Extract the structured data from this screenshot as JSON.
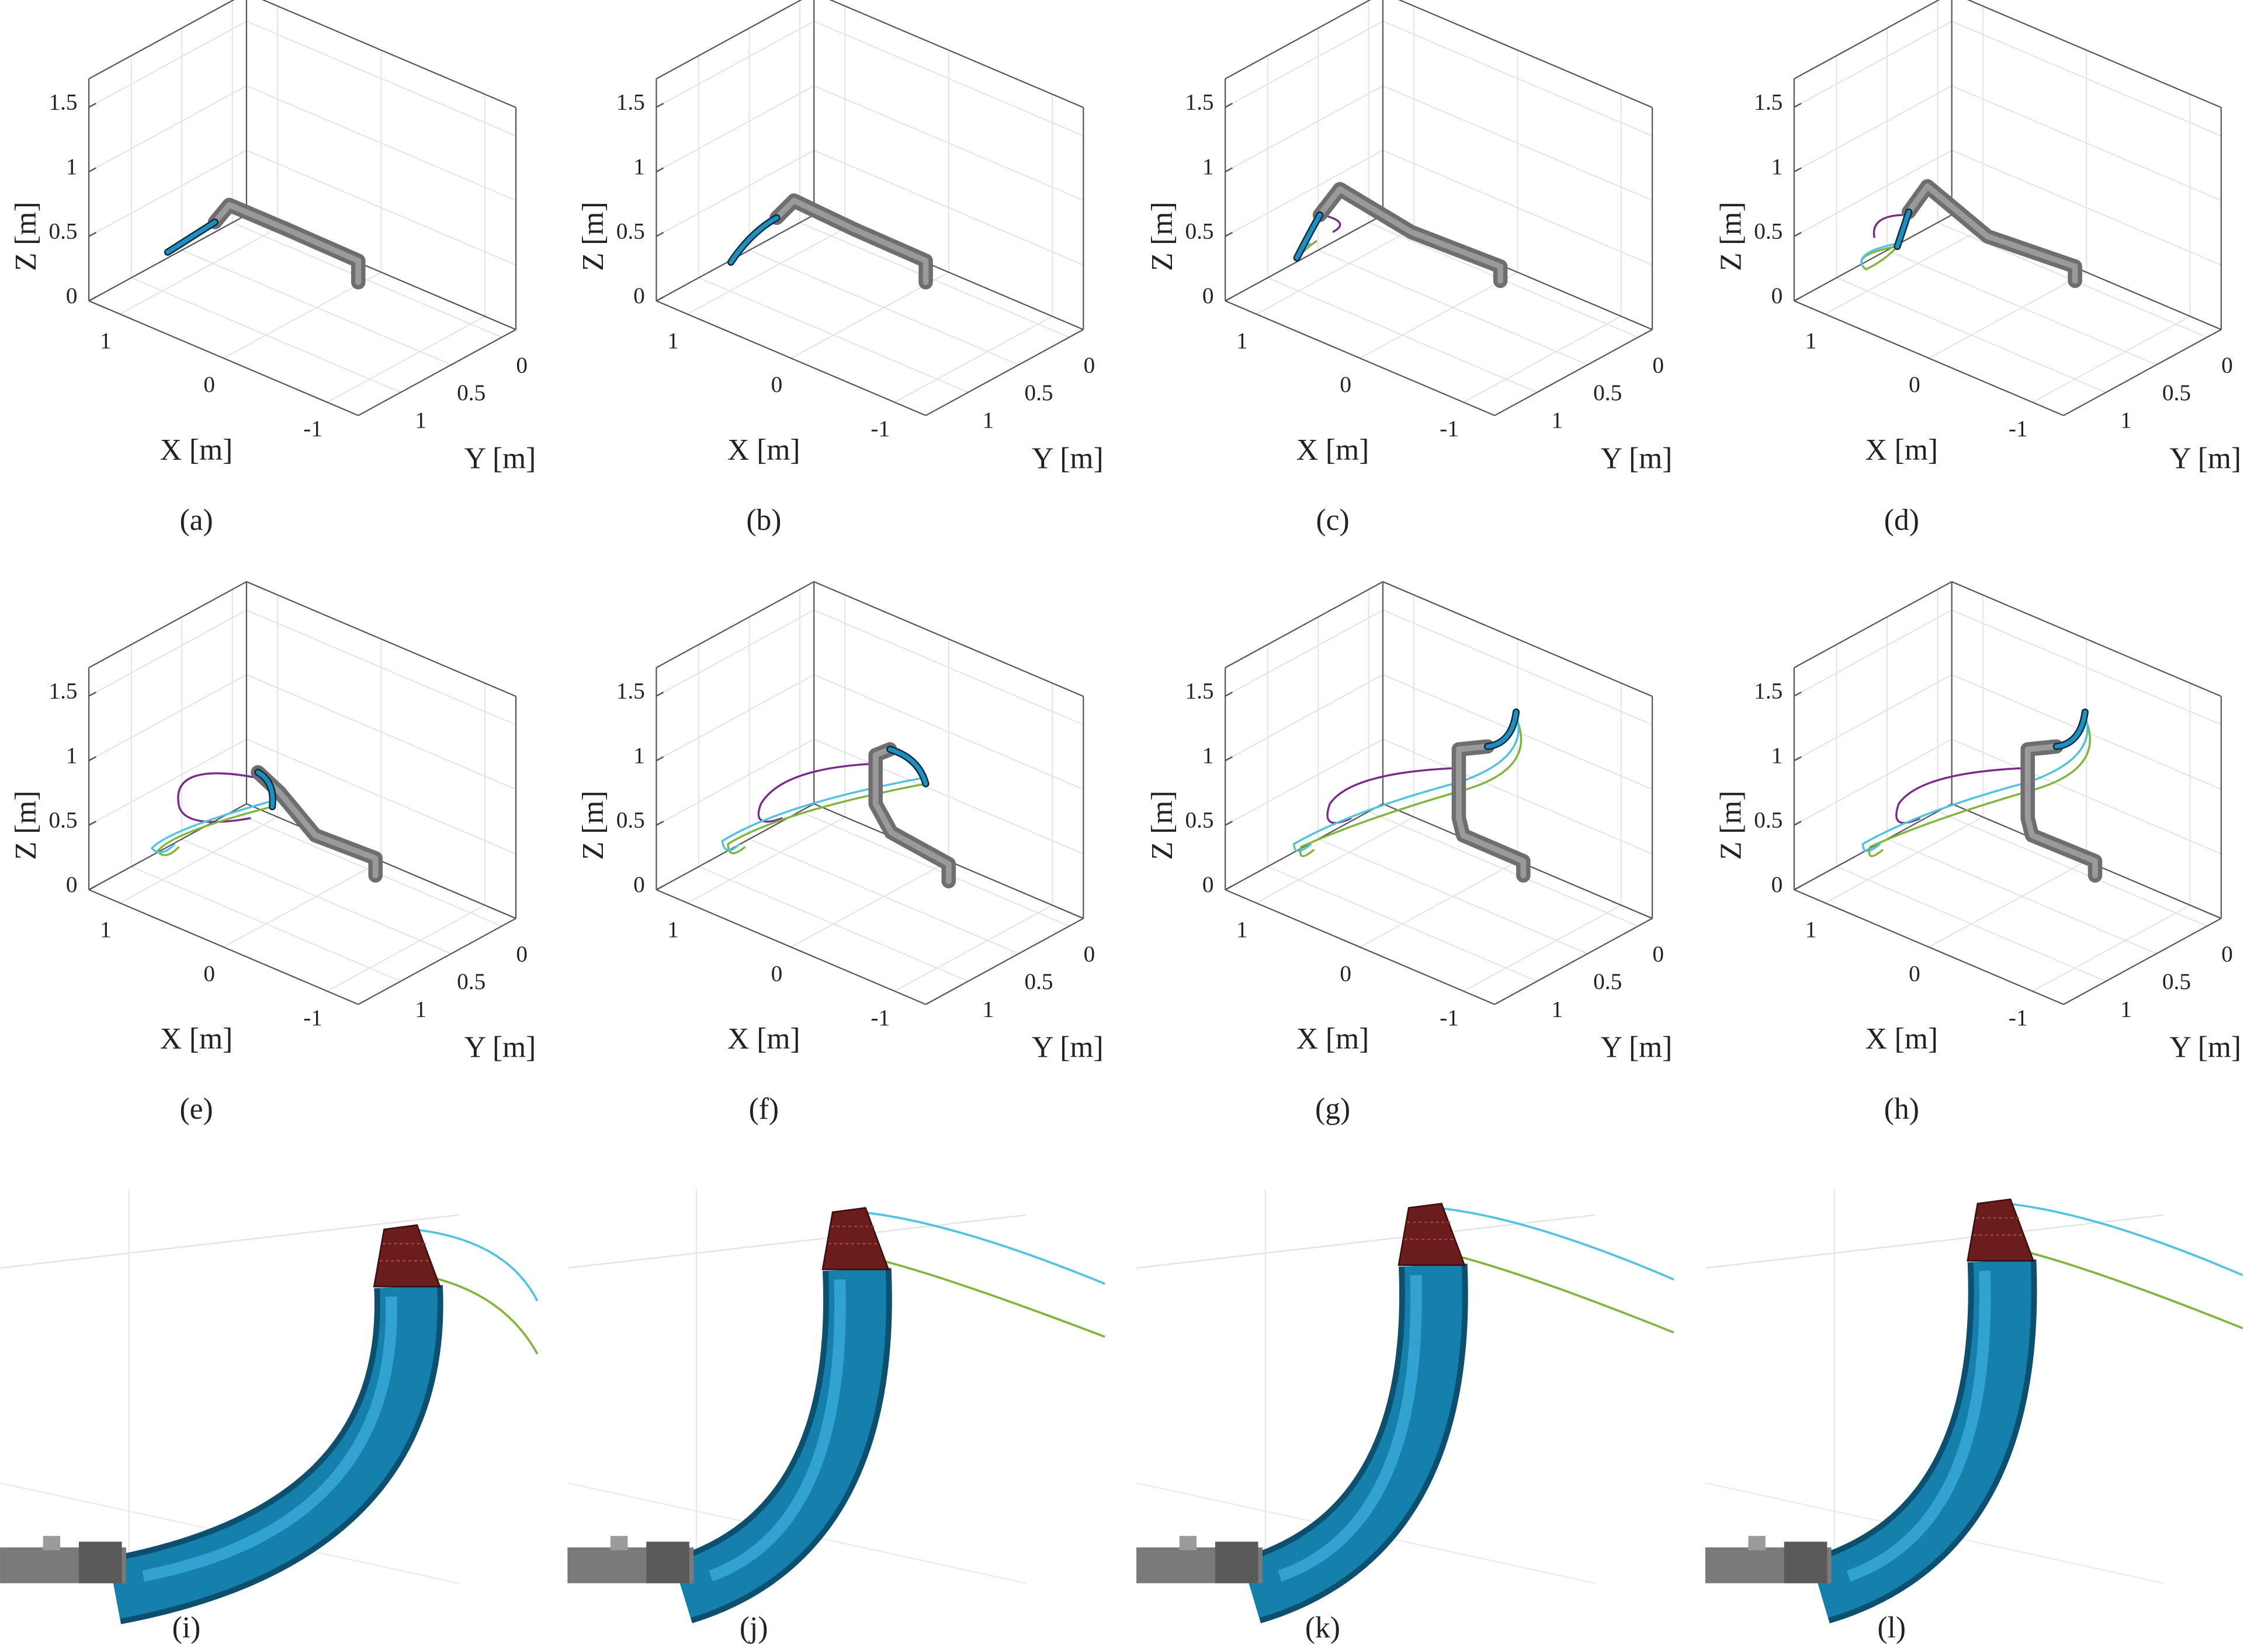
{
  "axes": {
    "xlabel": "X [m]",
    "ylabel": "Y [m]",
    "zlabel": "Z [m]",
    "xlim": [
      1.3,
      -1.3
    ],
    "ylim": [
      -0.14,
      1.42
    ],
    "zlim": [
      0,
      1.72
    ],
    "xticks": [
      1,
      0,
      -1
    ],
    "yticks": [
      0,
      0.5,
      1
    ],
    "zticks": [
      0,
      0.5,
      1,
      1.5
    ]
  },
  "captions": [
    "(a)",
    "(b)",
    "(c)",
    "(d)",
    "(e)",
    "(f)",
    "(g)",
    "(h)",
    "(i)",
    "(j)",
    "(k)",
    "(l)"
  ]
}
